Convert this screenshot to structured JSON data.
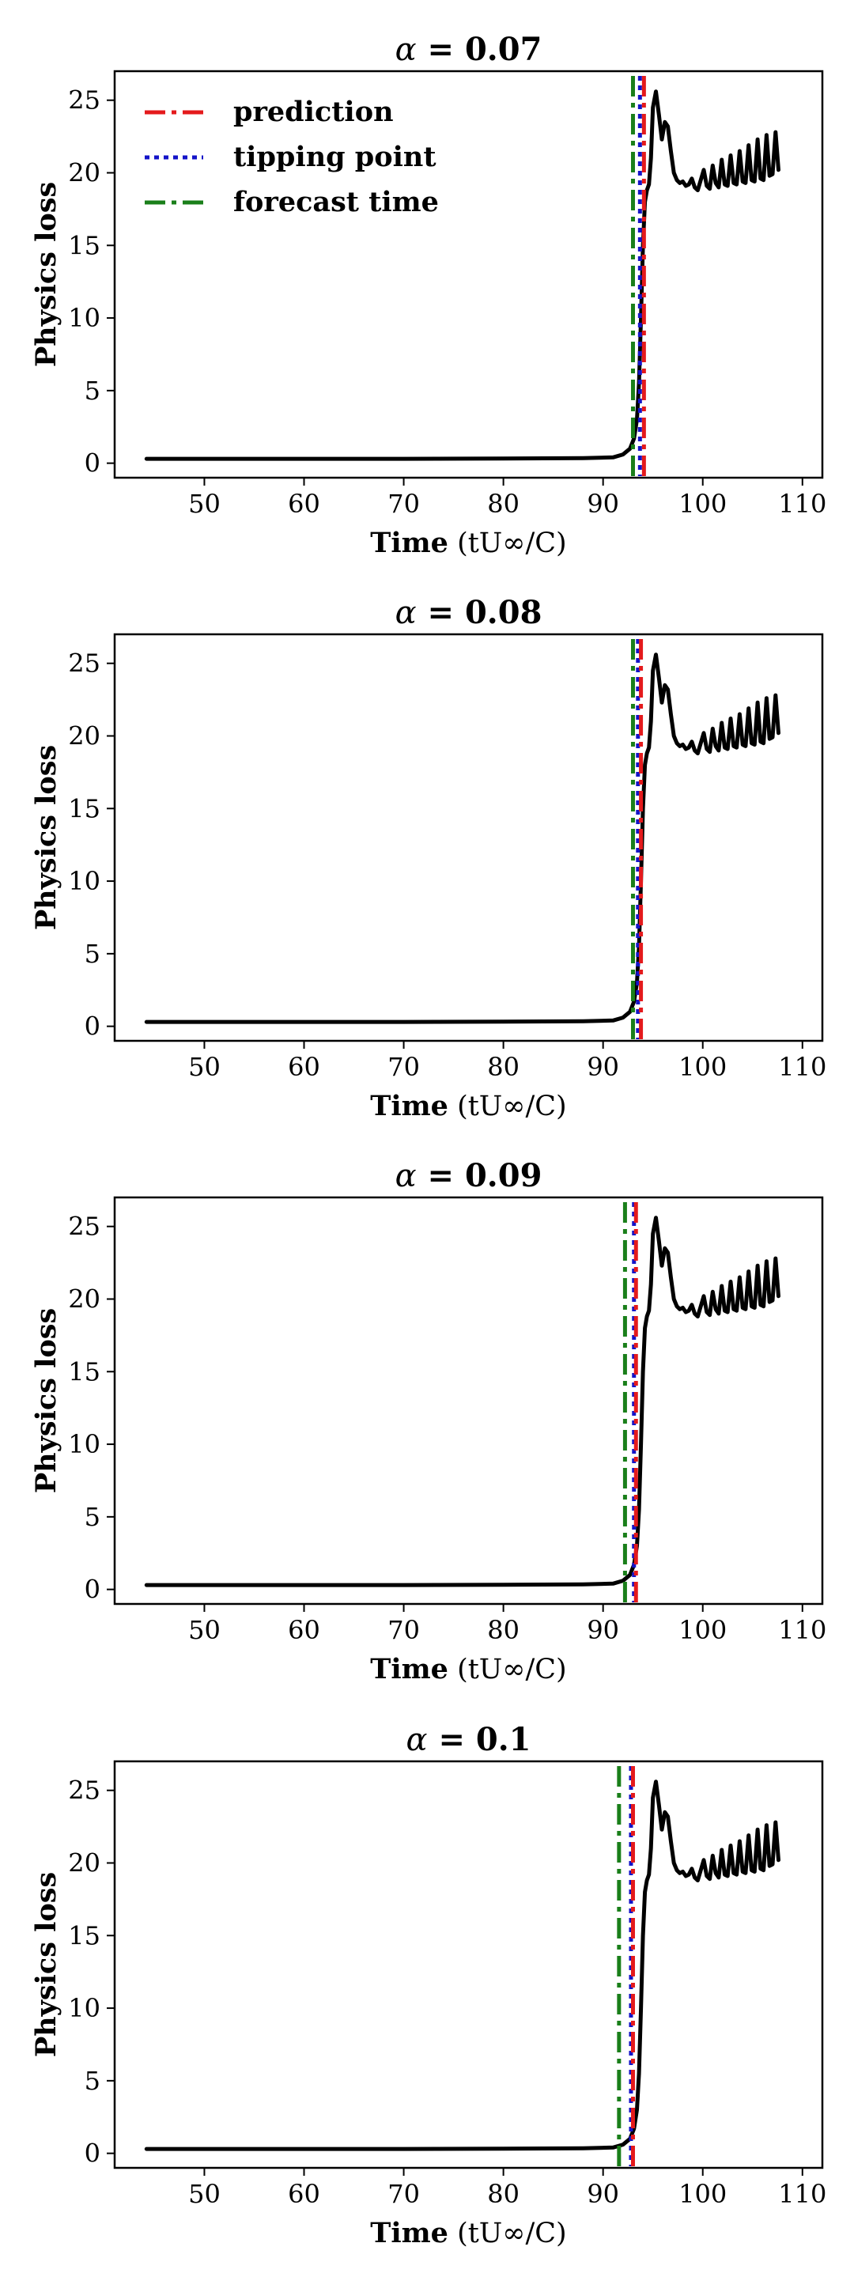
{
  "figure_title": "Physics loss vs. time for four alpha values",
  "chart_data": [
    {
      "type": "line",
      "title": "α = 0.07",
      "title_symbol": "α",
      "title_value": "0.07",
      "xlabel": "Time (tU∞/C)",
      "ylabel": "Physics loss",
      "xlim": [
        41,
        112
      ],
      "ylim": [
        -1,
        27
      ],
      "xticks": [
        50,
        60,
        70,
        80,
        90,
        100,
        110
      ],
      "yticks": [
        0,
        5,
        10,
        15,
        20,
        25
      ],
      "legend": [
        "prediction",
        "tipping point",
        "forecast time"
      ],
      "markers": {
        "prediction": 94.1,
        "tipping_point": 93.7,
        "forecast_time": 93.0
      }
    },
    {
      "type": "line",
      "title": "α = 0.08",
      "title_symbol": "α",
      "title_value": "0.08",
      "xlabel": "Time (tU∞/C)",
      "ylabel": "Physics loss",
      "xlim": [
        41,
        112
      ],
      "ylim": [
        -1,
        27
      ],
      "xticks": [
        50,
        60,
        70,
        80,
        90,
        100,
        110
      ],
      "yticks": [
        0,
        5,
        10,
        15,
        20,
        25
      ],
      "markers": {
        "prediction": 93.8,
        "tipping_point": 93.5,
        "forecast_time": 93.0
      }
    },
    {
      "type": "line",
      "title": "α = 0.09",
      "title_symbol": "α",
      "title_value": "0.09",
      "xlabel": "Time (tU∞/C)",
      "ylabel": "Physics loss",
      "xlim": [
        41,
        112
      ],
      "ylim": [
        -1,
        27
      ],
      "xticks": [
        50,
        60,
        70,
        80,
        90,
        100,
        110
      ],
      "yticks": [
        0,
        5,
        10,
        15,
        20,
        25
      ],
      "markers": {
        "prediction": 93.3,
        "tipping_point": 93.1,
        "forecast_time": 92.2
      }
    },
    {
      "type": "line",
      "title": "α = 0.1",
      "title_symbol": "α",
      "title_value": "0.1",
      "xlabel": "Time (tU∞/C)",
      "ylabel": "Physics loss",
      "xlim": [
        41,
        112
      ],
      "ylim": [
        -1,
        27
      ],
      "xticks": [
        50,
        60,
        70,
        80,
        90,
        100,
        110
      ],
      "yticks": [
        0,
        5,
        10,
        15,
        20,
        25
      ],
      "markers": {
        "prediction": 93.0,
        "tipping_point": 92.8,
        "forecast_time": 91.6
      }
    }
  ],
  "loss_series": {
    "name": "Physics loss",
    "x": [
      44.2,
      50,
      60,
      70,
      80,
      88,
      91,
      92,
      92.7,
      93.1,
      93.4,
      93.6,
      93.8,
      94.0,
      94.2,
      94.4,
      94.6,
      94.8,
      95.0,
      95.3,
      95.6,
      95.9,
      96.2,
      96.5,
      96.8,
      97.1,
      97.4,
      97.7,
      98.0,
      98.3,
      98.6,
      98.9,
      99.2,
      99.5,
      99.8,
      100.1,
      100.4,
      100.7,
      101.0,
      101.3,
      101.6,
      101.9,
      102.2,
      102.5,
      102.8,
      103.1,
      103.4,
      103.7,
      104.0,
      104.3,
      104.6,
      104.9,
      105.2,
      105.5,
      105.8,
      106.1,
      106.4,
      106.7,
      107.0,
      107.3,
      107.6
    ],
    "y": [
      0.3,
      0.3,
      0.3,
      0.3,
      0.32,
      0.35,
      0.4,
      0.6,
      1.0,
      1.7,
      3.0,
      5.5,
      10.0,
      15.0,
      18.0,
      18.8,
      19.2,
      21.0,
      24.5,
      25.6,
      24.0,
      22.3,
      23.5,
      23.2,
      21.5,
      20.0,
      19.5,
      19.3,
      19.4,
      19.1,
      19.2,
      19.6,
      19.0,
      18.8,
      19.5,
      20.2,
      19.1,
      18.9,
      20.5,
      19.3,
      19.0,
      20.9,
      19.2,
      19.1,
      21.2,
      19.3,
      19.2,
      21.5,
      19.4,
      19.3,
      21.9,
      19.5,
      19.4,
      22.3,
      19.6,
      19.5,
      22.6,
      19.8,
      19.9,
      22.8,
      20.2
    ]
  }
}
